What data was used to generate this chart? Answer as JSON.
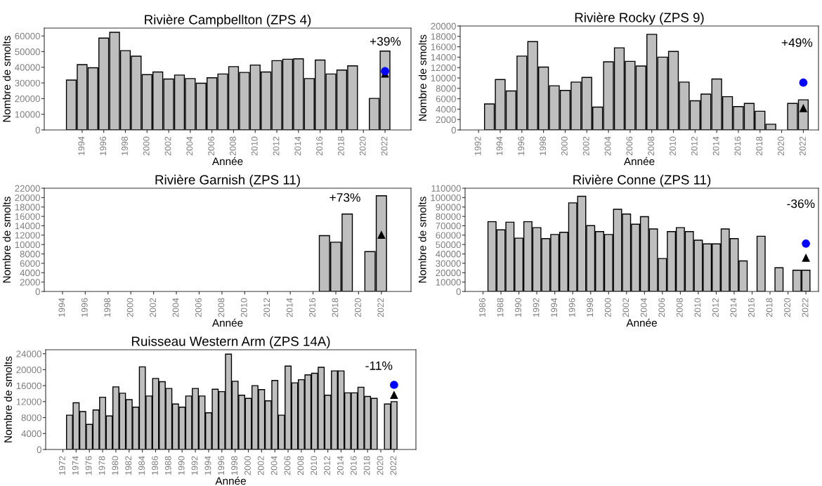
{
  "chart_data": [
    {
      "type": "bar",
      "title": "Rivière Campbellton (ZPS 4)",
      "xlabel": "Année",
      "ylabel": "Nombre de smolts",
      "xlim": [
        1990.5,
        2024.4
      ],
      "xticks": [
        1994,
        1996,
        1998,
        2000,
        2002,
        2004,
        2006,
        2008,
        2010,
        2012,
        2014,
        2016,
        2018,
        2020,
        2022
      ],
      "ylim": [
        0,
        65000
      ],
      "yticks": [
        0,
        10000,
        20000,
        30000,
        40000,
        50000,
        60000
      ],
      "grid": false,
      "series": [
        {
          "color": "#bebebe",
          "x": [
            1993,
            1994,
            1995,
            1996,
            1997,
            1998,
            1999,
            2000,
            2001,
            2002,
            2003,
            2004,
            2005,
            2006,
            2007,
            2008,
            2009,
            2010,
            2011,
            2012,
            2013,
            2014,
            2015,
            2016,
            2017,
            2018,
            2019,
            2020,
            2021,
            2022
          ],
          "values": [
            31800,
            41700,
            39700,
            58600,
            62300,
            50600,
            47100,
            35300,
            37000,
            32500,
            35000,
            32800,
            29800,
            33300,
            35700,
            40400,
            36700,
            41400,
            37000,
            44200,
            45100,
            45400,
            32800,
            44600,
            35700,
            38200,
            40900,
            null,
            20100,
            50300
          ]
        },
        {
          "type": "scatter",
          "marker": "triangle",
          "color": "#000000",
          "x": [
            2022
          ],
          "values": [
            36000
          ]
        },
        {
          "type": "scatter",
          "marker": "circle",
          "color": "#0000ff",
          "x": [
            2022
          ],
          "values": [
            37500
          ]
        }
      ],
      "annotations": [
        "+39%"
      ]
    },
    {
      "type": "bar",
      "title": "Rivière Rocky (ZPS 9)",
      "xlabel": "Année",
      "ylabel": "Nombre de smolts",
      "xlim": [
        1990.3,
        2023.4
      ],
      "xticks": [
        1992,
        1994,
        1996,
        1998,
        2000,
        2002,
        2004,
        2006,
        2008,
        2010,
        2012,
        2014,
        2016,
        2018,
        2020,
        2022
      ],
      "ylim": [
        0,
        20000
      ],
      "yticks": [
        0,
        2000,
        4000,
        6000,
        8000,
        10000,
        12000,
        14000,
        16000,
        18000,
        20000
      ],
      "grid": false,
      "series": [
        {
          "color": "#bebebe",
          "x": [
            1993,
            1994,
            1995,
            1996,
            1997,
            1998,
            1999,
            2000,
            2001,
            2002,
            2003,
            2004,
            2005,
            2006,
            2007,
            2008,
            2009,
            2010,
            2011,
            2012,
            2013,
            2014,
            2015,
            2016,
            2017,
            2018,
            2019,
            2020,
            2021,
            2022
          ],
          "values": [
            5000,
            9700,
            7500,
            14200,
            17000,
            12100,
            8500,
            7600,
            9200,
            10100,
            4400,
            13100,
            15800,
            13200,
            12300,
            18400,
            14000,
            15100,
            9200,
            5600,
            6900,
            9800,
            6400,
            4500,
            5100,
            3600,
            1100,
            null,
            5100,
            5800
          ]
        },
        {
          "type": "scatter",
          "marker": "triangle",
          "color": "#000000",
          "x": [
            2022
          ],
          "values": [
            4200
          ]
        },
        {
          "type": "scatter",
          "marker": "circle",
          "color": "#0000ff",
          "x": [
            2022
          ],
          "values": [
            9100
          ]
        }
      ],
      "annotations": [
        "+49%"
      ]
    },
    {
      "type": "bar",
      "title": "Rivière Garnish (ZPS 11)",
      "xlabel": "Année",
      "ylabel": "Nombre de smolts",
      "xlim": [
        1992.4,
        2024.6
      ],
      "xticks": [
        1994,
        1996,
        1998,
        2000,
        2002,
        2004,
        2006,
        2008,
        2010,
        2012,
        2014,
        2016,
        2018,
        2020,
        2022
      ],
      "ylim": [
        0,
        22000
      ],
      "yticks": [
        0,
        2000,
        4000,
        6000,
        8000,
        10000,
        12000,
        14000,
        16000,
        18000,
        20000,
        22000
      ],
      "grid": false,
      "series": [
        {
          "color": "#bebebe",
          "x": [
            2017,
            2018,
            2019,
            2020,
            2021,
            2022
          ],
          "values": [
            11900,
            10500,
            16500,
            null,
            8500,
            20400
          ]
        },
        {
          "type": "scatter",
          "marker": "triangle",
          "color": "#000000",
          "x": [
            2022
          ],
          "values": [
            12100
          ]
        }
      ],
      "annotations": [
        "+73%"
      ]
    },
    {
      "type": "bar",
      "title": "Rivière Conne (ZPS 11)",
      "xlabel": "Année",
      "ylabel": "Nombre de smolts",
      "xlim": [
        1984.0,
        2023.4
      ],
      "xticks": [
        1986,
        1988,
        1990,
        1992,
        1994,
        1996,
        1998,
        2000,
        2002,
        2004,
        2006,
        2008,
        2010,
        2012,
        2014,
        2016,
        2018,
        2020,
        2022
      ],
      "ylim": [
        0,
        110000
      ],
      "yticks": [
        0,
        10000,
        20000,
        30000,
        40000,
        50000,
        60000,
        70000,
        80000,
        90000,
        100000,
        110000
      ],
      "grid": false,
      "series": [
        {
          "color": "#bebebe",
          "x": [
            1987,
            1988,
            1989,
            1990,
            1991,
            1992,
            1993,
            1994,
            1995,
            1996,
            1997,
            1998,
            1999,
            2000,
            2001,
            2002,
            2003,
            2004,
            2005,
            2006,
            2007,
            2008,
            2009,
            2010,
            2011,
            2012,
            2013,
            2014,
            2015,
            2016,
            2017,
            2018,
            2019,
            2020,
            2021,
            2022
          ],
          "values": [
            74400,
            65700,
            73800,
            56800,
            74400,
            68000,
            56300,
            60700,
            63000,
            94400,
            101400,
            70200,
            63800,
            60700,
            87500,
            82500,
            71600,
            79700,
            66600,
            35100,
            63800,
            68000,
            63800,
            54600,
            50700,
            50700,
            66600,
            56300,
            32600,
            null,
            58800,
            null,
            25300,
            null,
            22600,
            22600
          ]
        },
        {
          "type": "scatter",
          "marker": "triangle",
          "color": "#000000",
          "x": [
            2022
          ],
          "values": [
            36000
          ]
        },
        {
          "type": "scatter",
          "marker": "circle",
          "color": "#0000ff",
          "x": [
            2022
          ],
          "values": [
            51000
          ]
        }
      ],
      "annotations": [
        "-36%"
      ]
    },
    {
      "type": "bar",
      "title": "Ruisseau Western Arm (ZPS 14A)",
      "xlabel": "Année",
      "ylabel": "Nombre de smolts",
      "xlim": [
        1969.4,
        2025.3
      ],
      "xticks": [
        1972,
        1974,
        1976,
        1978,
        1980,
        1982,
        1984,
        1986,
        1988,
        1990,
        1992,
        1994,
        1996,
        1998,
        2000,
        2002,
        2004,
        2006,
        2008,
        2010,
        2012,
        2014,
        2016,
        2018,
        2020,
        2022
      ],
      "ylim": [
        0,
        25000
      ],
      "yticks": [
        0,
        4000,
        8000,
        12000,
        16000,
        20000,
        24000
      ],
      "grid": false,
      "series": [
        {
          "color": "#bebebe",
          "x": [
            1973,
            1974,
            1975,
            1976,
            1977,
            1978,
            1979,
            1980,
            1981,
            1982,
            1983,
            1984,
            1985,
            1986,
            1987,
            1988,
            1989,
            1990,
            1991,
            1992,
            1993,
            1994,
            1995,
            1996,
            1997,
            1998,
            1999,
            2000,
            2001,
            2002,
            2003,
            2004,
            2005,
            2006,
            2007,
            2008,
            2009,
            2010,
            2011,
            2012,
            2013,
            2014,
            2015,
            2016,
            2017,
            2018,
            2019,
            2020,
            2021,
            2022
          ],
          "values": [
            8600,
            11700,
            9500,
            6300,
            9900,
            13100,
            8400,
            15700,
            14100,
            12500,
            10600,
            20700,
            13400,
            17800,
            17000,
            15300,
            11400,
            10600,
            13400,
            15300,
            13400,
            9200,
            15100,
            14500,
            23900,
            17100,
            13600,
            12800,
            16000,
            15000,
            12200,
            17300,
            8600,
            20900,
            16700,
            17500,
            18700,
            19100,
            20600,
            13600,
            19700,
            19700,
            14200,
            14200,
            15600,
            13300,
            12800,
            null,
            11400,
            12000
          ]
        },
        {
          "type": "scatter",
          "marker": "triangle",
          "color": "#000000",
          "x": [
            2022
          ],
          "values": [
            13700
          ]
        },
        {
          "type": "scatter",
          "marker": "circle",
          "color": "#0000ff",
          "x": [
            2022
          ],
          "values": [
            16200
          ]
        }
      ],
      "annotations": [
        "-11%"
      ]
    }
  ]
}
